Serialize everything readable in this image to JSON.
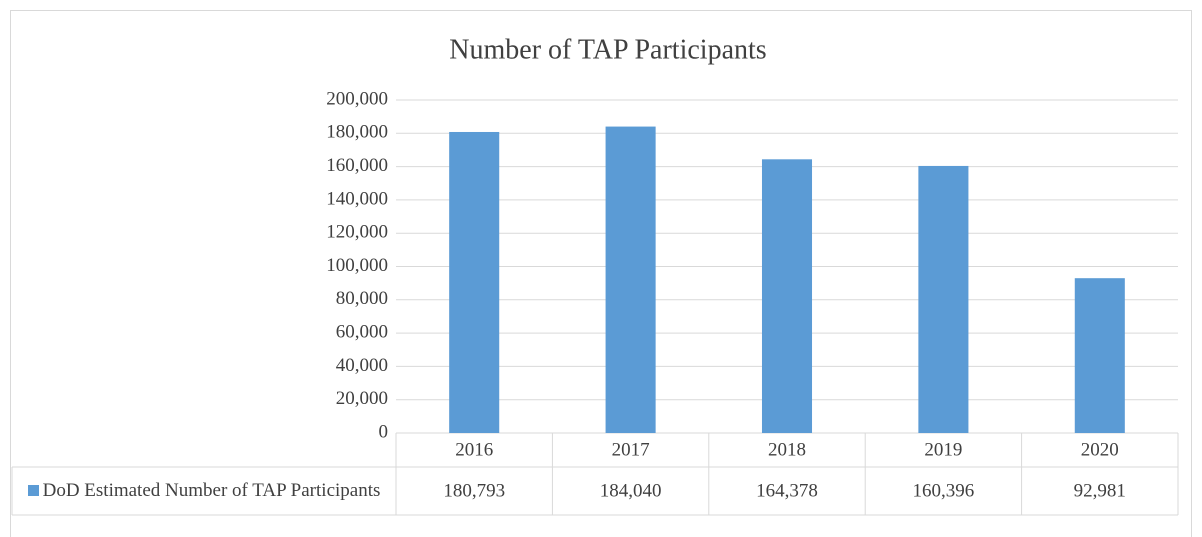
{
  "chart_data": {
    "type": "bar",
    "title": "Number of TAP Participants",
    "categories": [
      "2016",
      "2017",
      "2018",
      "2019",
      "2020"
    ],
    "series": [
      {
        "name": "DoD Estimated Number of TAP Participants",
        "color": "#5b9bd5",
        "values": [
          180793,
          184040,
          164378,
          160396,
          92981
        ],
        "value_labels": [
          "180,793",
          "184,040",
          "164,378",
          "160,396",
          "92,981"
        ]
      }
    ],
    "ylim": [
      0,
      200000
    ],
    "yticks": [
      0,
      {
        "value": 20000,
        "label": "20,000"
      },
      {
        "value": 40000,
        "label": "40,000"
      },
      {
        "value": 60000,
        "label": "60,000"
      },
      {
        "value": 80000,
        "label": "80,000"
      },
      {
        "value": 100000,
        "label": "100,000"
      },
      {
        "value": 120000,
        "label": "120,000"
      },
      {
        "value": 140000,
        "label": "140,000"
      },
      {
        "value": 160000,
        "label": "160,000"
      },
      {
        "value": 180000,
        "label": "180,000"
      },
      {
        "value": 200000,
        "label": "200,000"
      }
    ],
    "grid": true
  }
}
